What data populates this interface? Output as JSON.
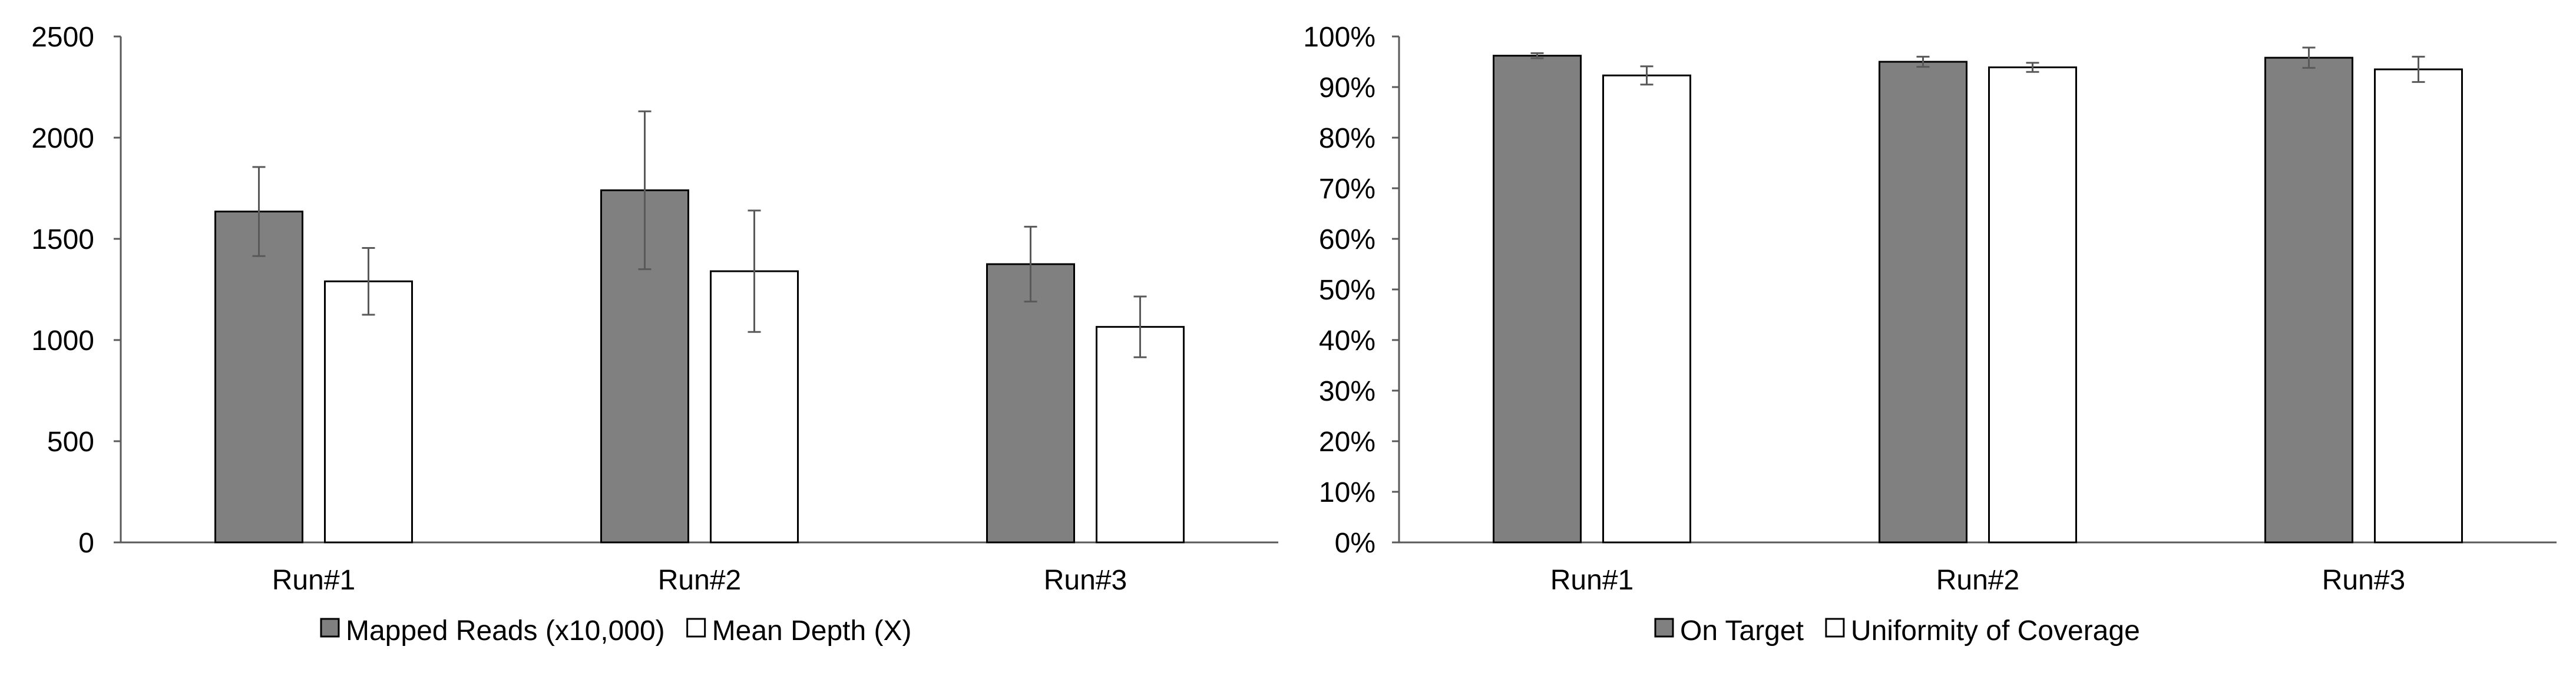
{
  "chart_data": [
    {
      "type": "bar",
      "categories": [
        "Run#1",
        "Run#2",
        "Run#3"
      ],
      "series": [
        {
          "name": "Mapped Reads (x10,000)",
          "values": [
            1635,
            1740,
            1375
          ],
          "errors": [
            220,
            390,
            185
          ]
        },
        {
          "name": "Mean Depth (X)",
          "values": [
            1290,
            1340,
            1065
          ],
          "errors": [
            165,
            300,
            150
          ]
        }
      ],
      "ylim": [
        0,
        2500
      ],
      "yticks": [
        0,
        500,
        1000,
        1500,
        2000,
        2500
      ],
      "ytick_labels": [
        "0",
        "500",
        "1000",
        "1500",
        "2000",
        "2500"
      ],
      "title": "",
      "xlabel": "",
      "ylabel": "",
      "legend": "bottom",
      "grid": false,
      "colors": [
        "#808080",
        "#ffffff"
      ]
    },
    {
      "type": "bar",
      "categories": [
        "Run#1",
        "Run#2",
        "Run#3"
      ],
      "series": [
        {
          "name": "On Target",
          "values": [
            96.2,
            95.0,
            95.8
          ],
          "errors": [
            0.5,
            1.0,
            2.0
          ]
        },
        {
          "name": "Uniformity of Coverage",
          "values": [
            92.3,
            93.9,
            93.5
          ],
          "errors": [
            1.8,
            0.9,
            2.5
          ]
        }
      ],
      "ylim": [
        0,
        100
      ],
      "yticks": [
        0,
        10,
        20,
        30,
        40,
        50,
        60,
        70,
        80,
        90,
        100
      ],
      "ytick_labels": [
        "0%",
        "10%",
        "20%",
        "30%",
        "40%",
        "50%",
        "60%",
        "70%",
        "80%",
        "90%",
        "100%"
      ],
      "title": "",
      "xlabel": "",
      "ylabel": "",
      "legend": "bottom",
      "grid": false,
      "colors": [
        "#808080",
        "#ffffff"
      ]
    }
  ]
}
